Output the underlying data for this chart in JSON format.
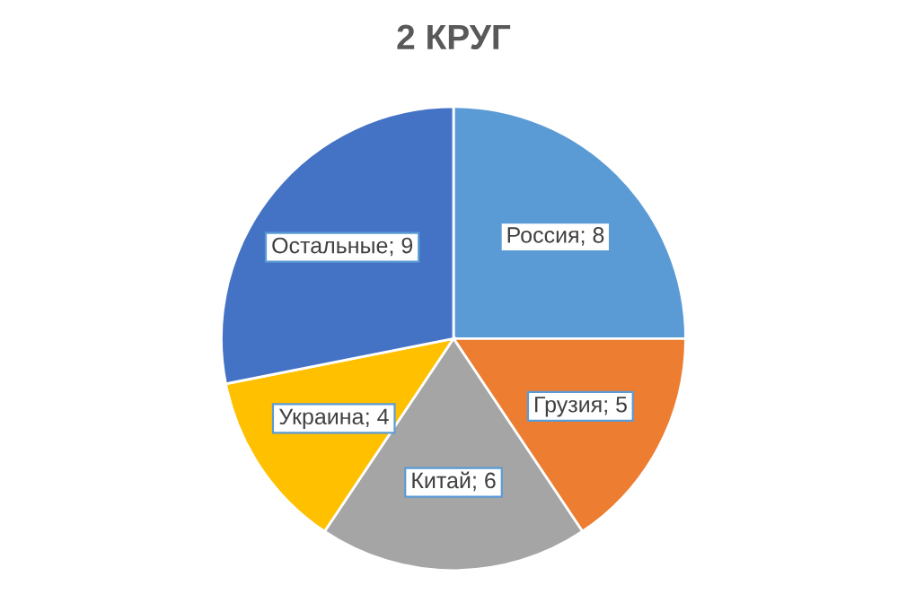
{
  "chart_data": {
    "type": "pie",
    "title": "2 КРУГ",
    "categories": [
      "Россия",
      "Грузия",
      "Китай",
      "Украина",
      "Остальные"
    ],
    "values": [
      8,
      5,
      6,
      4,
      9
    ],
    "colors": [
      "#5b9bd5",
      "#ed7d31",
      "#a5a5a5",
      "#ffc000",
      "#4472c4"
    ],
    "value_labels": [
      "; 8",
      "; 5",
      "; 6",
      "; 4",
      "; 9"
    ]
  }
}
